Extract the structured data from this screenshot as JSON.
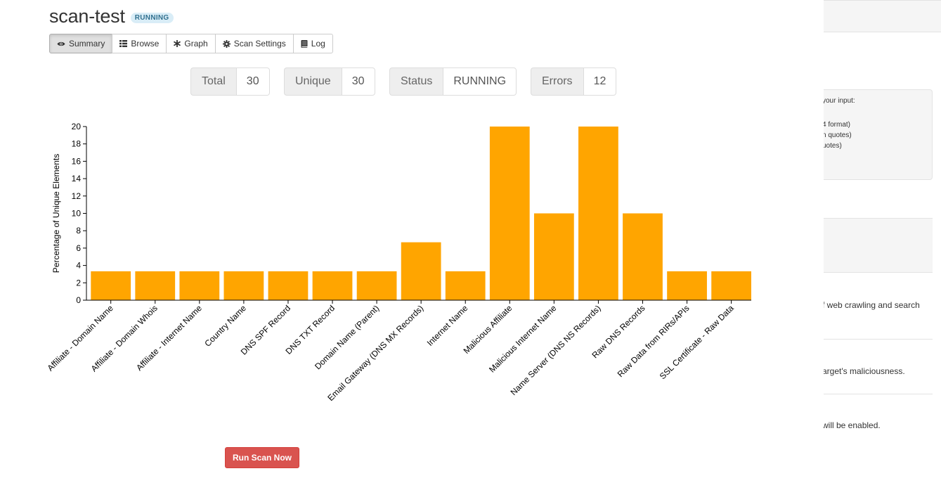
{
  "scan": {
    "name": "scan-test",
    "status_badge": "RUNNING"
  },
  "tabs": [
    {
      "label": "Summary",
      "icon": "eye-icon",
      "active": true
    },
    {
      "label": "Browse",
      "icon": "list-icon",
      "active": false
    },
    {
      "label": "Graph",
      "icon": "asterisk-icon",
      "active": false
    },
    {
      "label": "Scan Settings",
      "icon": "gear-icon",
      "active": false
    },
    {
      "label": "Log",
      "icon": "book-icon",
      "active": false
    }
  ],
  "stats": {
    "total": {
      "label": "Total",
      "value": "30"
    },
    "unique": {
      "label": "Unique",
      "value": "30"
    },
    "status": {
      "label": "Status",
      "value": "RUNNING"
    },
    "errors": {
      "label": "Errors",
      "value": "12"
    }
  },
  "chart_data": {
    "type": "bar",
    "ylabel": "Percentage of Unique Elements",
    "ylim": [
      0,
      20
    ],
    "yticks": [
      "0",
      "2",
      "4",
      "6",
      "8",
      "10",
      "12",
      "14",
      "16",
      "18",
      "20"
    ],
    "bar_color": "#ffa500",
    "categories": [
      "Affiliate - Domain Name",
      "Affiliate - Domain Whois",
      "Affiliate - Internet Name",
      "Country Name",
      "DNS SPF Record",
      "DNS TXT Record",
      "Domain Name (Parent)",
      "Email Gateway (DNS MX Records)",
      "Internet Name",
      "Malicious Affiliate",
      "Malicious Internet Name",
      "Name Server (DNS NS Records)",
      "Raw DNS Records",
      "Raw Data from RIRs/APIs",
      "SSL Certificate - Raw Data"
    ],
    "values": [
      3.33,
      3.33,
      3.33,
      3.33,
      3.33,
      3.33,
      3.33,
      6.67,
      3.33,
      20,
      10,
      20,
      10,
      3.33,
      3.33
    ]
  },
  "actions": {
    "run_scan": "Run Scan Now"
  },
  "side_panel": {
    "lines": [
      "your input:",
      "4 format)",
      "n quotes)",
      "uotes)",
      "f web crawling and search",
      "arget's maliciousness.",
      "will be enabled."
    ]
  },
  "colors": {
    "danger": "#d9534f",
    "badge_bg": "#d9edf7",
    "badge_text": "#31708f",
    "bar": "#ffa500"
  }
}
